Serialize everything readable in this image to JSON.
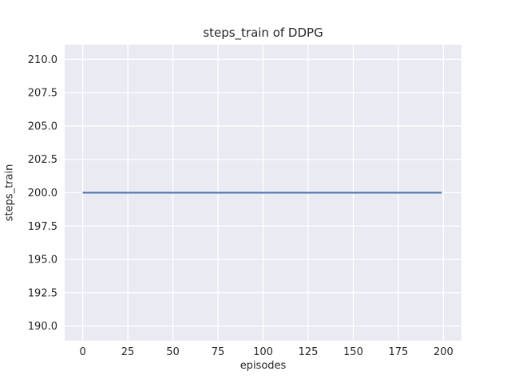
{
  "chart_data": {
    "type": "line",
    "title": "steps_train of DDPG",
    "xlabel": "episodes",
    "ylabel": "steps_train",
    "x_ticks": [
      0,
      25,
      50,
      75,
      100,
      125,
      150,
      175,
      200
    ],
    "x_tick_labels": [
      "0",
      "25",
      "50",
      "75",
      "100",
      "125",
      "150",
      "175",
      "200"
    ],
    "y_ticks": [
      190.0,
      192.5,
      195.0,
      197.5,
      200.0,
      202.5,
      205.0,
      207.5,
      210.0
    ],
    "y_tick_labels": [
      "190.0",
      "192.5",
      "195.0",
      "197.5",
      "200.0",
      "202.5",
      "205.0",
      "207.5",
      "210.0"
    ],
    "xlim": [
      -10,
      210
    ],
    "ylim": [
      188.9,
      211.1
    ],
    "grid": true,
    "legend": "none",
    "series": [
      {
        "name": "steps_train",
        "x": [
          0,
          199
        ],
        "y": [
          200,
          200
        ],
        "description": "constant line at steps_train = 200 for episodes 0 through 199"
      }
    ],
    "colors": {
      "line": "#4c72b0",
      "axes_background": "#eaeaf2",
      "grid": "#ffffff",
      "text": "#262626",
      "figure_background": "#ffffff"
    }
  }
}
